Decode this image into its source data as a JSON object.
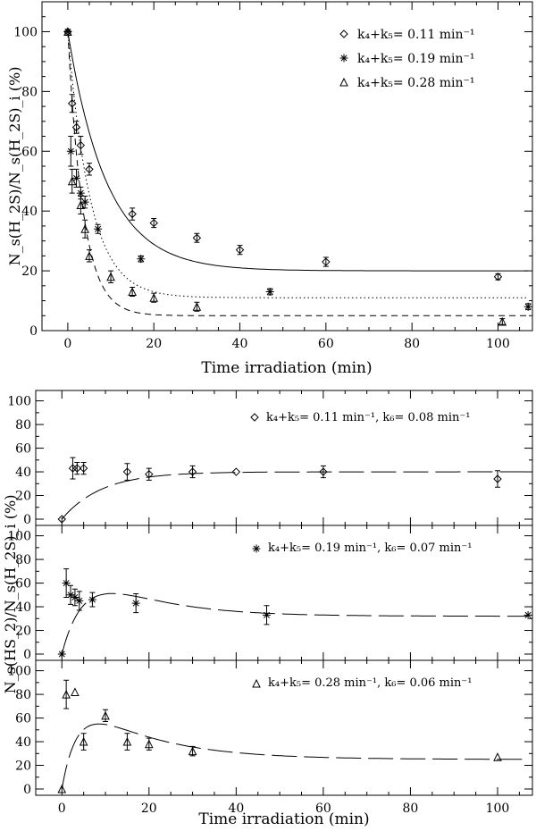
{
  "chart_data": [
    {
      "type": "scatter",
      "xlabel": "Time irradiation (min)",
      "ylabel": "N_s(H_2S)/N_s(H_2S)_i (%)",
      "xlim": [
        -6,
        108
      ],
      "ylim": [
        0,
        110
      ],
      "xticks": [
        0,
        20,
        40,
        60,
        80,
        100
      ],
      "xtick_labels": [
        "0",
        "20",
        "40",
        "60",
        "80",
        "100"
      ],
      "yticks": [
        0,
        20,
        40,
        60,
        80,
        100
      ],
      "ytick_labels": [
        "0",
        "20",
        "40",
        "60",
        "80",
        "100"
      ],
      "legend": [
        {
          "marker": "diamond",
          "line": "solid",
          "label": "k₄+k₅= 0.11 min⁻¹"
        },
        {
          "marker": "asterisk",
          "line": "dotted",
          "label": "k₄+k₅= 0.19 min⁻¹"
        },
        {
          "marker": "triangle",
          "line": "dashed",
          "label": "k₄+k₅= 0.28 min⁻¹"
        }
      ],
      "series": [
        {
          "name": "k4+k5=0.11",
          "marker": "diamond",
          "x": [
            0,
            1,
            2,
            3,
            5,
            15,
            20,
            30,
            40,
            60,
            100
          ],
          "y": [
            100,
            76,
            68,
            62,
            54,
            39,
            36,
            31,
            27,
            23,
            18
          ],
          "err": [
            0,
            3,
            2,
            3,
            2,
            2,
            1.5,
            1.5,
            1.5,
            1.5,
            1
          ]
        },
        {
          "name": "k4+k5=0.19",
          "marker": "asterisk",
          "x": [
            0,
            0.7,
            2,
            3,
            4,
            7,
            17,
            47,
            107
          ],
          "y": [
            100,
            60,
            51,
            46,
            43,
            34,
            24,
            13,
            8
          ],
          "err": [
            0,
            5,
            3,
            2,
            2,
            1.5,
            1,
            1,
            1
          ]
        },
        {
          "name": "k4+k5=0.28",
          "marker": "triangle",
          "x": [
            0,
            1,
            3,
            4,
            5,
            10,
            15,
            20,
            30,
            101
          ],
          "y": [
            100,
            50,
            42,
            34,
            25,
            18,
            13,
            11,
            8,
            3
          ],
          "err": [
            0,
            4,
            3,
            3,
            2,
            2,
            1.5,
            1.5,
            1.5,
            1
          ]
        }
      ],
      "fits": [
        {
          "name": "k4+k5=0.11",
          "style": "solid",
          "rate": 0.11,
          "asymptote": 20
        },
        {
          "name": "k4+k5=0.19",
          "style": "dotted",
          "rate": 0.19,
          "asymptote": 11
        },
        {
          "name": "k4+k5=0.28",
          "style": "dashed",
          "rate": 0.28,
          "asymptote": 5
        }
      ]
    },
    {
      "type": "scatter",
      "xlabel": "Time irradiation (min)",
      "ylabel": "N_s(HS_2)/N_s(H_2S)_i (%)",
      "xlim": [
        -6,
        108
      ],
      "ylim": [
        0,
        105
      ],
      "xticks": [
        0,
        20,
        40,
        60,
        80,
        100
      ],
      "xtick_labels": [
        "0",
        "20",
        "40",
        "60",
        "80",
        "100"
      ],
      "panels": [
        {
          "marker": "diamond",
          "label": "k₄+k₅= 0.11 min⁻¹, k₆= 0.08 min⁻¹",
          "yticks": [
            0,
            20,
            40,
            60,
            80,
            100
          ],
          "ytick_labels": [
            "0",
            "20",
            "40",
            "60",
            "80",
            "100"
          ],
          "x": [
            0,
            2.5,
            3.5,
            5,
            15,
            20,
            30,
            40,
            60,
            100
          ],
          "y": [
            0,
            43,
            43,
            43,
            40,
            38,
            40,
            40,
            40,
            34
          ],
          "err": [
            0,
            9,
            5,
            5,
            7,
            5,
            5,
            0,
            5,
            7
          ],
          "fit": {
            "k1": 0.11,
            "k2": 0.08,
            "plateau": 40,
            "style": "solid"
          }
        },
        {
          "marker": "asterisk",
          "label": "k₄+k₅= 0.19 min⁻¹, k₆= 0.07 min⁻¹",
          "yticks": [
            0,
            20,
            40,
            60,
            80,
            100
          ],
          "ytick_labels": [
            "0",
            "20",
            "40",
            "60",
            "80",
            "100"
          ],
          "x": [
            0,
            1,
            2,
            3,
            4,
            7,
            17,
            47,
            107
          ],
          "y": [
            0,
            60,
            50,
            48,
            45,
            46,
            43,
            33,
            33
          ],
          "err": [
            0,
            12,
            8,
            7,
            8,
            6,
            8,
            8,
            0
          ],
          "fit": {
            "k1": 0.19,
            "k2": 0.07,
            "plateau": 32,
            "style": "solid"
          }
        },
        {
          "marker": "triangle",
          "label": "k₄+k₅= 0.28 min⁻¹, k₆= 0.06 min⁻¹",
          "yticks": [
            0,
            20,
            40,
            60,
            80,
            100
          ],
          "ytick_labels": [
            "0",
            "20",
            "40",
            "60",
            "80",
            "100"
          ],
          "x": [
            0,
            1,
            3,
            5,
            10,
            15,
            20,
            30,
            100
          ],
          "y": [
            0,
            80,
            82,
            40,
            62,
            40,
            38,
            32,
            27
          ],
          "err": [
            0,
            12,
            0,
            7,
            5,
            7,
            5,
            4,
            0
          ],
          "fit": {
            "k1": 0.28,
            "k2": 0.06,
            "plateau": 25,
            "style": "solid"
          }
        }
      ]
    }
  ]
}
